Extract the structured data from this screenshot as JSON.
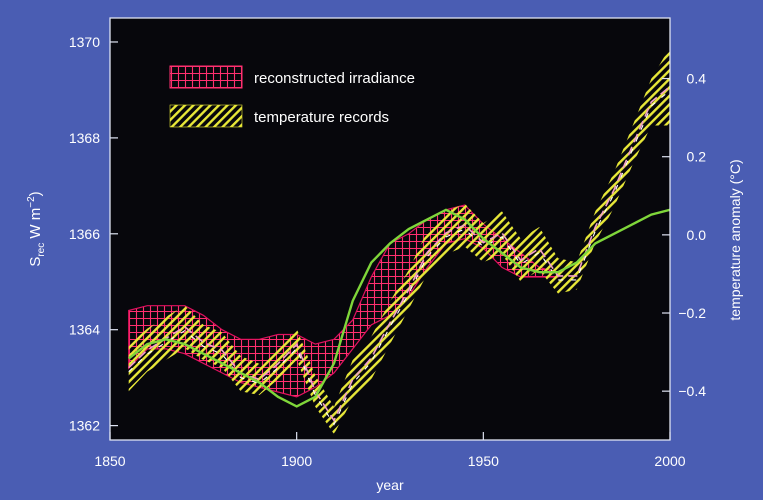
{
  "colors": {
    "background": "#4a5db3",
    "plot_background": "#07070c",
    "irradiance": "#e0115f",
    "temperature": "#e3e32a",
    "smoothed_irradiance": "#7fd63a",
    "series_line_pink": "#f2a0c8",
    "series_line_white": "#ffffff"
  },
  "legend": [
    {
      "label": "reconstructed irradiance",
      "pattern": "crosshatch"
    },
    {
      "label": "temperature records",
      "pattern": "diagonal-hatch"
    }
  ],
  "chart_data": {
    "type": "area",
    "xlabel": "year",
    "ylabel_left": "S_rec W m−2",
    "ylabel_right": "temperature anomaly (°C)",
    "xlim": [
      1850,
      2000
    ],
    "ylim_left": [
      1361.7,
      1370.5
    ],
    "ylim_right": [
      -0.525,
      0.555
    ],
    "x_ticks": [
      1850,
      1900,
      1950,
      2000
    ],
    "y_left_ticks": [
      1362,
      1364,
      1366,
      1368,
      1370
    ],
    "y_right_ticks": [
      -0.4,
      -0.2,
      0.0,
      0.2,
      0.4
    ],
    "legend_position": "top-left",
    "grid": false,
    "series": [
      {
        "name": "reconstructed irradiance",
        "axis": "left",
        "x": [
          1855,
          1860,
          1865,
          1870,
          1875,
          1880,
          1885,
          1890,
          1895,
          1900,
          1905,
          1910,
          1915,
          1920,
          1925,
          1930,
          1935,
          1940,
          1945,
          1950,
          1955,
          1960,
          1965,
          1970
        ],
        "upper": [
          1364.4,
          1364.5,
          1364.5,
          1364.5,
          1364.3,
          1364.0,
          1363.8,
          1363.8,
          1363.9,
          1363.9,
          1363.7,
          1363.8,
          1364.2,
          1365.1,
          1365.8,
          1366.0,
          1366.3,
          1366.5,
          1366.6,
          1366.2,
          1365.9,
          1365.6,
          1365.3,
          1365.2
        ],
        "lower": [
          1363.2,
          1363.6,
          1363.6,
          1363.5,
          1363.3,
          1363.1,
          1362.9,
          1362.8,
          1362.7,
          1362.6,
          1362.8,
          1363.1,
          1363.6,
          1364.1,
          1364.3,
          1364.7,
          1365.3,
          1365.8,
          1365.9,
          1365.7,
          1365.3,
          1365.1,
          1365.1,
          1365.1
        ]
      },
      {
        "name": "temperature records",
        "axis": "right",
        "x": [
          1855,
          1860,
          1865,
          1870,
          1875,
          1880,
          1885,
          1890,
          1895,
          1900,
          1905,
          1910,
          1915,
          1920,
          1925,
          1930,
          1935,
          1940,
          1945,
          1950,
          1955,
          1960,
          1965,
          1970,
          1975,
          1980,
          1985,
          1990,
          1995,
          2000
        ],
        "upper": [
          -0.28,
          -0.24,
          -0.21,
          -0.18,
          -0.23,
          -0.25,
          -0.31,
          -0.33,
          -0.29,
          -0.24,
          -0.36,
          -0.44,
          -0.32,
          -0.26,
          -0.17,
          -0.09,
          0.01,
          0.06,
          0.08,
          0.03,
          0.06,
          -0.01,
          0.02,
          -0.06,
          -0.07,
          0.06,
          0.16,
          0.28,
          0.4,
          0.48
        ],
        "lower": [
          -0.4,
          -0.35,
          -0.32,
          -0.29,
          -0.32,
          -0.34,
          -0.4,
          -0.41,
          -0.37,
          -0.32,
          -0.44,
          -0.51,
          -0.42,
          -0.37,
          -0.28,
          -0.19,
          -0.1,
          -0.05,
          -0.03,
          -0.07,
          -0.05,
          -0.12,
          -0.09,
          -0.15,
          -0.14,
          -0.02,
          0.07,
          0.18,
          0.28,
          0.28
        ]
      },
      {
        "name": "",
        "axis": "left",
        "x": [
          1855,
          1860,
          1865,
          1870,
          1875,
          1880,
          1885,
          1890,
          1895,
          1900,
          1905,
          1910,
          1915,
          1920,
          1925,
          1930,
          1935,
          1940,
          1945,
          1950,
          1955,
          1960,
          1965,
          1970,
          1975,
          1980,
          1985,
          1990,
          1995,
          2000
        ],
        "values": [
          1363.4,
          1363.7,
          1363.8,
          1363.7,
          1363.5,
          1363.3,
          1363.1,
          1362.9,
          1362.6,
          1362.4,
          1362.6,
          1363.3,
          1364.6,
          1365.4,
          1365.8,
          1366.1,
          1366.3,
          1366.5,
          1366.3,
          1365.9,
          1365.6,
          1365.3,
          1365.2,
          1365.2,
          1365.4,
          1365.8,
          1366.0,
          1366.2,
          1366.4,
          1366.5
        ]
      }
    ]
  }
}
